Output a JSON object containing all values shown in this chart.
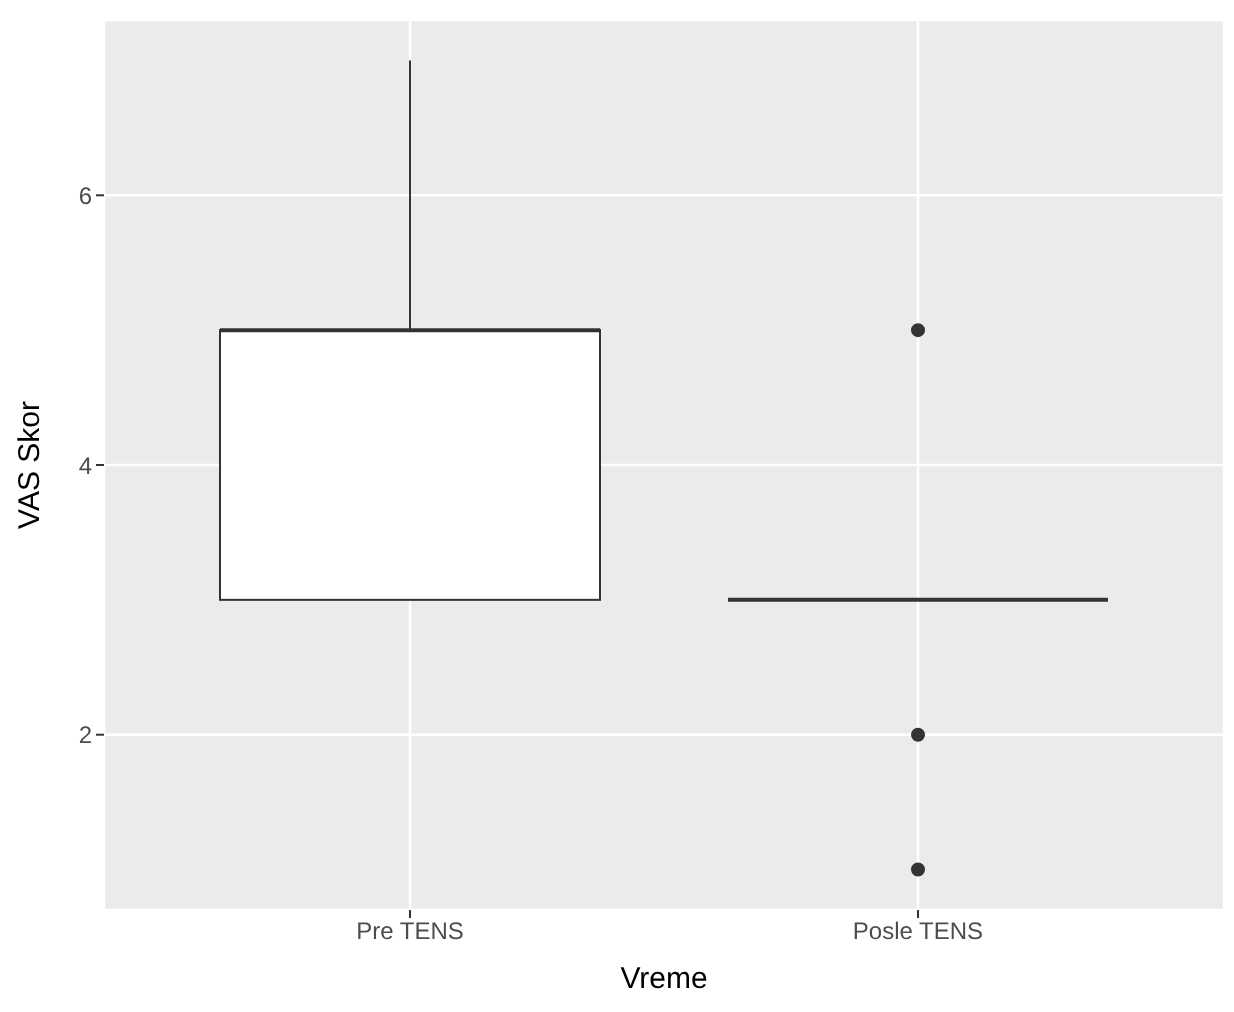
{
  "chart_data": {
    "type": "box",
    "xlabel": "Vreme",
    "ylabel": "VAS Skor",
    "categories": [
      "Pre TENS",
      "Posle TENS"
    ],
    "boxes": [
      {
        "low": 3,
        "q1": 3,
        "median": 5,
        "q3": 5,
        "high": 7
      },
      {
        "low": 3,
        "q1": 3,
        "median": 3,
        "q3": 3,
        "high": 3,
        "outliers": [
          5,
          2,
          1
        ]
      }
    ],
    "ylim": [
      0.7,
      7.3
    ],
    "yticks": [
      2,
      4,
      6
    ],
    "grid": true
  }
}
